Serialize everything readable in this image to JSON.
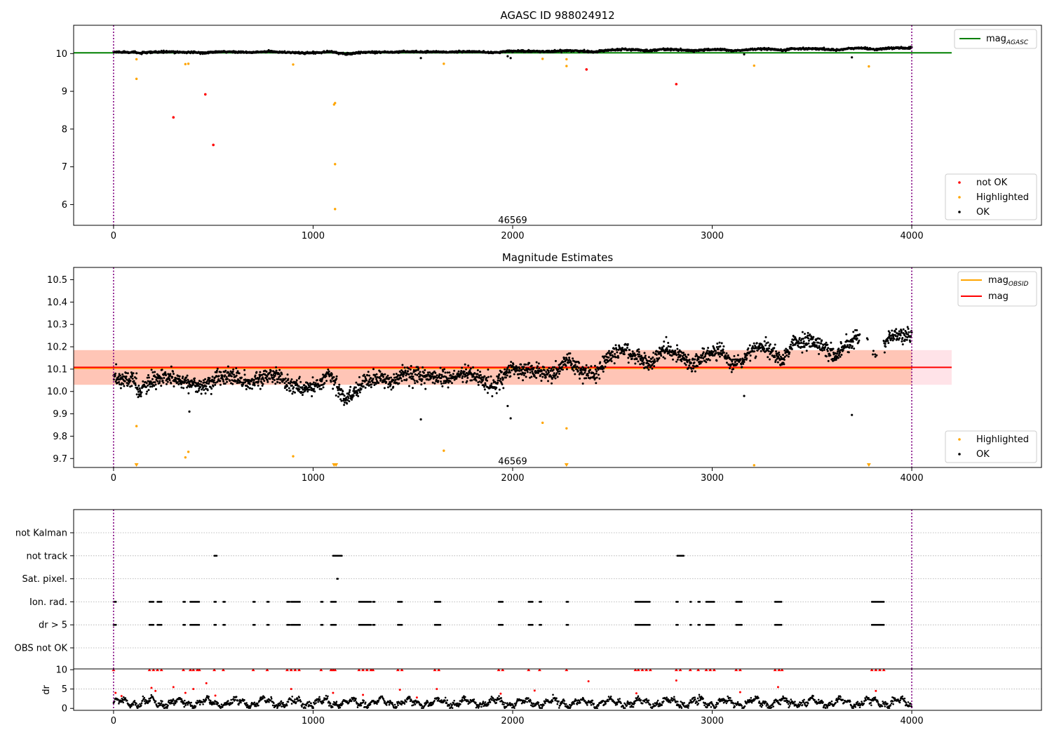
{
  "chart_data": [
    {
      "type": "scatter",
      "title": "AGASC ID 988024912",
      "xlim": [
        -200,
        4650
      ],
      "ylim": [
        5.45,
        10.75
      ],
      "x_ticks": [
        0,
        1000,
        2000,
        3000,
        4000
      ],
      "y_ticks": [
        6,
        7,
        8,
        9,
        10
      ],
      "obsid_label": "46569",
      "obsid_label_x": 2000,
      "obsid_label_y": 5.6,
      "observation_bounds": [
        0,
        4000
      ],
      "reference_lines": [
        {
          "name": "mag",
          "subscript": "AGASC",
          "y": 10.02,
          "x": [
            -200,
            4200
          ],
          "color": "#008000"
        }
      ],
      "legend_top": [
        "mag_AGASC"
      ],
      "legend_bottom": [
        "not OK",
        "Highlighted",
        "OK"
      ],
      "series": [
        {
          "name": "not OK",
          "color": "#ff0000",
          "points": [
            [
              300,
              8.31
            ],
            [
              460,
              8.92
            ],
            [
              500,
              7.58
            ],
            [
              2370,
              9.58
            ],
            [
              2820,
              9.19
            ]
          ]
        },
        {
          "name": "Highlighted",
          "color": "#ffa500",
          "points": [
            [
              115,
              9.85
            ],
            [
              115,
              9.33
            ],
            [
              360,
              9.72
            ],
            [
              375,
              9.73
            ],
            [
              900,
              9.71
            ],
            [
              1105,
              8.65
            ],
            [
              1110,
              8.69
            ],
            [
              1110,
              7.07
            ],
            [
              1110,
              5.88
            ],
            [
              1655,
              9.73
            ],
            [
              2150,
              9.86
            ],
            [
              2270,
              9.85
            ],
            [
              2270,
              9.67
            ],
            [
              3210,
              9.68
            ],
            [
              3785,
              9.66
            ]
          ]
        },
        {
          "name": "OK",
          "color": "#000000",
          "note": "dense band of points following the magnitude trend (~10.05 to ~10.25)",
          "outliers": [
            [
              1540,
              9.88
            ],
            [
              1975,
              9.93
            ],
            [
              1990,
              9.88
            ],
            [
              3160,
              9.98
            ],
            [
              3700,
              9.9
            ]
          ]
        }
      ]
    },
    {
      "type": "scatter",
      "title": "Magnitude Estimates",
      "xlim": [
        -200,
        4650
      ],
      "ylim": [
        9.66,
        10.555
      ],
      "x_ticks": [
        0,
        1000,
        2000,
        3000,
        4000
      ],
      "y_ticks": [
        9.7,
        9.8,
        9.9,
        10.0,
        10.1,
        10.2,
        10.3,
        10.4,
        10.5
      ],
      "obsid_label": "46569",
      "obsid_label_x": 2000,
      "obsid_label_y": 9.69,
      "observation_bounds": [
        0,
        4000
      ],
      "reference_lines": [
        {
          "name": "mag",
          "subscript": "OBSID",
          "y": 10.104,
          "x": [
            -200,
            4000
          ],
          "color": "#ffa500"
        },
        {
          "name": "mag",
          "subscript": "",
          "y": 10.108,
          "x": [
            -200,
            4200
          ],
          "color": "#ff0000"
        }
      ],
      "bands": [
        {
          "y": [
            10.03,
            10.185
          ],
          "x": [
            -200,
            4200
          ],
          "color": "#ffc0cb"
        },
        {
          "y": [
            10.03,
            10.185
          ],
          "x": [
            -200,
            4000
          ],
          "color": "#ffa07a"
        }
      ],
      "legend_top": [
        "mag_OBSID",
        "mag"
      ],
      "legend_bottom": [
        "Highlighted",
        "OK"
      ],
      "series": [
        {
          "name": "Highlighted",
          "color": "#ffa500",
          "points": [
            [
              115,
              9.845
            ],
            [
              360,
              9.705
            ],
            [
              375,
              9.73
            ],
            [
              900,
              9.71
            ],
            [
              1655,
              9.735
            ],
            [
              2150,
              9.86
            ],
            [
              2270,
              9.835
            ],
            [
              3210,
              9.67
            ]
          ],
          "below_axis_markers_x": [
            115,
            1105,
            1115,
            2270,
            3785
          ]
        },
        {
          "name": "OK",
          "color": "#000000",
          "trend": [
            [
              0,
              10.06
            ],
            [
              100,
              10.05
            ],
            [
              130,
              10.0
            ],
            [
              200,
              10.05
            ],
            [
              300,
              10.06
            ],
            [
              380,
              10.04
            ],
            [
              450,
              10.02
            ],
            [
              520,
              10.06
            ],
            [
              600,
              10.07
            ],
            [
              680,
              10.03
            ],
            [
              780,
              10.08
            ],
            [
              850,
              10.05
            ],
            [
              950,
              10.01
            ],
            [
              1020,
              10.03
            ],
            [
              1080,
              10.08
            ],
            [
              1110,
              10.04
            ],
            [
              1160,
              9.96
            ],
            [
              1200,
              9.99
            ],
            [
              1260,
              10.05
            ],
            [
              1350,
              10.06
            ],
            [
              1400,
              10.04
            ],
            [
              1450,
              10.08
            ],
            [
              1530,
              10.06
            ],
            [
              1600,
              10.07
            ],
            [
              1680,
              10.05
            ],
            [
              1750,
              10.08
            ],
            [
              1820,
              10.07
            ],
            [
              1900,
              10.02
            ],
            [
              1950,
              10.07
            ],
            [
              2000,
              10.1
            ],
            [
              2100,
              10.09
            ],
            [
              2200,
              10.08
            ],
            [
              2280,
              10.14
            ],
            [
              2350,
              10.09
            ],
            [
              2420,
              10.07
            ],
            [
              2470,
              10.15
            ],
            [
              2550,
              10.19
            ],
            [
              2620,
              10.16
            ],
            [
              2680,
              10.12
            ],
            [
              2750,
              10.19
            ],
            [
              2800,
              10.18
            ],
            [
              2860,
              10.14
            ],
            [
              2900,
              10.12
            ],
            [
              2980,
              10.17
            ],
            [
              3050,
              10.18
            ],
            [
              3100,
              10.12
            ],
            [
              3150,
              10.14
            ],
            [
              3200,
              10.19
            ],
            [
              3280,
              10.2
            ],
            [
              3350,
              10.13
            ],
            [
              3400,
              10.22
            ],
            [
              3500,
              10.22
            ],
            [
              3560,
              10.2
            ],
            [
              3620,
              10.15
            ],
            [
              3680,
              10.22
            ],
            [
              3750,
              10.25
            ],
            [
              3820,
              10.18
            ],
            [
              3900,
              10.25
            ],
            [
              4000,
              10.25
            ]
          ],
          "outliers": [
            [
              380,
              9.91
            ],
            [
              1540,
              9.875
            ],
            [
              1975,
              9.935
            ],
            [
              1990,
              9.88
            ],
            [
              3160,
              9.98
            ],
            [
              3700,
              9.895
            ]
          ]
        }
      ]
    },
    {
      "type": "scatter",
      "title": "",
      "xlim": [
        -200,
        4650
      ],
      "observation_bounds": [
        0,
        4000
      ],
      "flag_rows": [
        "not Kalman",
        "not track",
        "Sat. pixel.",
        "Ion. rad.",
        "dr > 5",
        "OBS not OK"
      ],
      "flag_points": {
        "not track": [
          [
            505,
            520
          ],
          [
            1100,
            1145
          ],
          [
            2825,
            2860
          ]
        ],
        "Sat. pixel.": [
          [
            1120,
            1125
          ]
        ],
        "Ion. rad.": [
          [
            0,
            15
          ],
          [
            180,
            200
          ],
          [
            220,
            240
          ],
          [
            350,
            360
          ],
          [
            385,
            430
          ],
          [
            505,
            515
          ],
          [
            550,
            560
          ],
          [
            700,
            710
          ],
          [
            770,
            780
          ],
          [
            870,
            885
          ],
          [
            890,
            935
          ],
          [
            1040,
            1050
          ],
          [
            1090,
            1115
          ],
          [
            1230,
            1290
          ],
          [
            1300,
            1310
          ],
          [
            1425,
            1445
          ],
          [
            1610,
            1640
          ],
          [
            1930,
            1950
          ],
          [
            2080,
            2100
          ],
          [
            2135,
            2145
          ],
          [
            2270,
            2280
          ],
          [
            2615,
            2690
          ],
          [
            2820,
            2830
          ],
          [
            2890,
            2895
          ],
          [
            2930,
            2940
          ],
          [
            2970,
            3010
          ],
          [
            3120,
            3150
          ],
          [
            3315,
            3350
          ],
          [
            3800,
            3860
          ]
        ],
        "dr > 5": [
          [
            0,
            15
          ],
          [
            180,
            200
          ],
          [
            220,
            240
          ],
          [
            350,
            360
          ],
          [
            385,
            430
          ],
          [
            505,
            515
          ],
          [
            550,
            560
          ],
          [
            700,
            710
          ],
          [
            770,
            780
          ],
          [
            870,
            885
          ],
          [
            890,
            935
          ],
          [
            1040,
            1050
          ],
          [
            1090,
            1115
          ],
          [
            1230,
            1290
          ],
          [
            1300,
            1310
          ],
          [
            1425,
            1445
          ],
          [
            1610,
            1640
          ],
          [
            1930,
            1950
          ],
          [
            2080,
            2100
          ],
          [
            2135,
            2145
          ],
          [
            2270,
            2280
          ],
          [
            2615,
            2690
          ],
          [
            2820,
            2830
          ],
          [
            2890,
            2895
          ],
          [
            2930,
            2940
          ],
          [
            2970,
            3010
          ],
          [
            3120,
            3150
          ],
          [
            3315,
            3350
          ],
          [
            3800,
            3860
          ]
        ]
      }
    },
    {
      "type": "scatter",
      "title": "",
      "ylabel": "dr",
      "xlim": [
        -200,
        4650
      ],
      "ylim": [
        -0.5,
        10.2
      ],
      "x_ticks": [
        0,
        1000,
        2000,
        3000,
        4000
      ],
      "y_ticks": [
        0,
        5,
        10
      ],
      "observation_bounds": [
        0,
        4000
      ],
      "series": [
        {
          "name": "OK",
          "color": "#000000",
          "note": "dr values mostly between 0 and 3"
        },
        {
          "name": "not OK",
          "color": "#ff0000",
          "points": [
            [
              10,
              4.0
            ],
            [
              40,
              3.2
            ],
            [
              190,
              5.3
            ],
            [
              210,
              4.5
            ],
            [
              300,
              5.5
            ],
            [
              360,
              4.0
            ],
            [
              400,
              5.0
            ],
            [
              465,
              6.5
            ],
            [
              510,
              3.3
            ],
            [
              890,
              5.0
            ],
            [
              1100,
              4.0
            ],
            [
              1250,
              3.5
            ],
            [
              1435,
              4.8
            ],
            [
              1520,
              2.8
            ],
            [
              1620,
              5.0
            ],
            [
              1940,
              3.8
            ],
            [
              2110,
              4.6
            ],
            [
              2380,
              7.0
            ],
            [
              2620,
              3.9
            ],
            [
              2820,
              7.2
            ],
            [
              3140,
              4.2
            ],
            [
              3330,
              5.5
            ],
            [
              3820,
              4.5
            ]
          ],
          "capped_x": [
            0,
            180,
            200,
            220,
            240,
            350,
            385,
            400,
            420,
            430,
            505,
            550,
            700,
            770,
            870,
            890,
            910,
            930,
            1040,
            1090,
            1100,
            1110,
            1230,
            1250,
            1270,
            1290,
            1300,
            1425,
            1445,
            1610,
            1630,
            1930,
            1950,
            2080,
            2135,
            2270,
            2615,
            2630,
            2650,
            2670,
            2690,
            2820,
            2840,
            2890,
            2930,
            2970,
            2990,
            3010,
            3120,
            3140,
            3315,
            3335,
            3350,
            3800,
            3820,
            3840,
            3860
          ]
        }
      ]
    }
  ]
}
